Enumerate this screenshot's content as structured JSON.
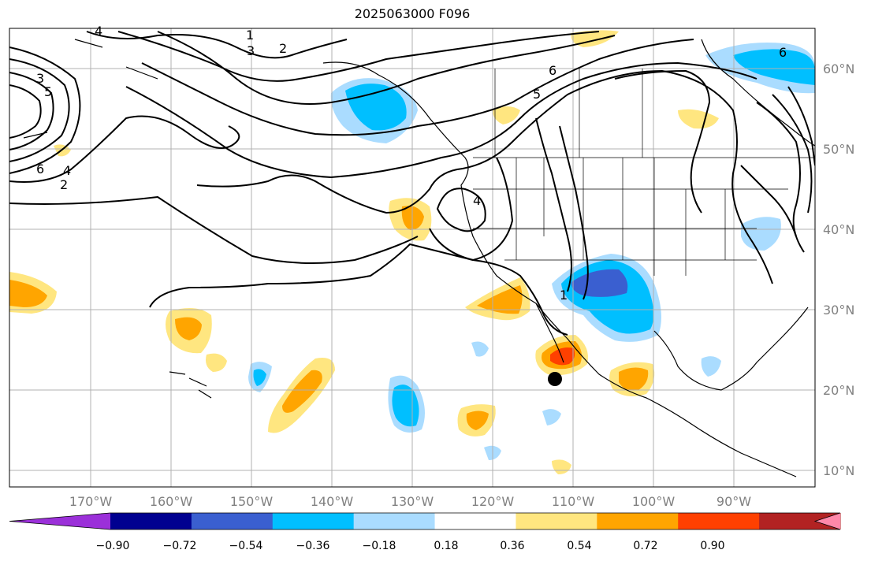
{
  "title": "2025063000 F096",
  "lat_labels": [
    "60°N",
    "50°N",
    "40°N",
    "30°N",
    "20°N",
    "10°N"
  ],
  "lon_labels": [
    "170°W",
    "160°W",
    "150°W",
    "140°W",
    "130°W",
    "120°W",
    "110°W",
    "100°W",
    "90°W"
  ],
  "contour_labels": [
    "1",
    "2",
    "3",
    "4",
    "5",
    "6"
  ],
  "colorbar": {
    "ticks": [
      "−0.90",
      "−0.72",
      "−0.54",
      "−0.36",
      "−0.18",
      "0.18",
      "0.36",
      "0.54",
      "0.72",
      "0.90"
    ],
    "colors": [
      "#9b30d9",
      "#000090",
      "#3a5fd0",
      "#00bfff",
      "#aadcff",
      "#ffffff",
      "#ffe680",
      "#ffa500",
      "#ff4000",
      "#b22222",
      "#ff88aa"
    ]
  }
}
